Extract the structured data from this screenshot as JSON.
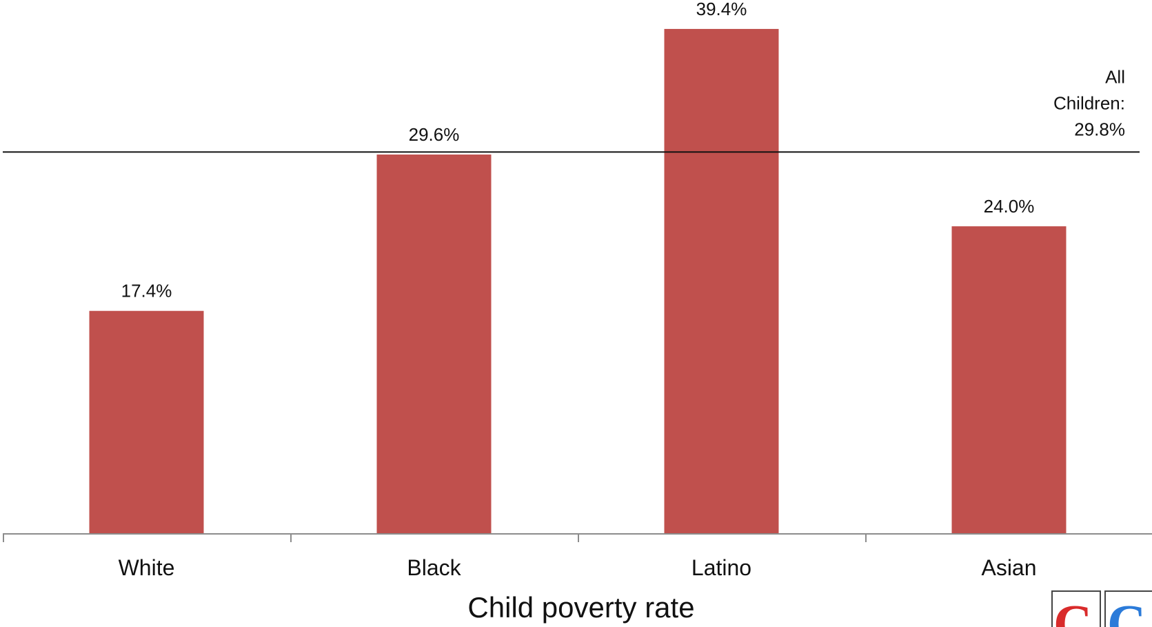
{
  "chart_data": {
    "type": "bar",
    "categories": [
      "White",
      "Black",
      "Latino",
      "Asian"
    ],
    "values": [
      17.4,
      29.6,
      39.4,
      24.0
    ],
    "value_labels": [
      "17.4%",
      "29.6%",
      "39.4%",
      "24.0%"
    ],
    "xlabel": "Child poverty rate",
    "ylabel": "",
    "ylim": [
      0,
      40
    ],
    "grid": false,
    "bar_color": "#C0504D",
    "reference_line": {
      "value": 29.8,
      "label_lines": [
        "All",
        "Children:",
        "29.8%"
      ]
    }
  },
  "logo": {
    "letters": [
      "C",
      "C"
    ],
    "colors": [
      "#D92B2B",
      "#2B7BD9"
    ]
  }
}
